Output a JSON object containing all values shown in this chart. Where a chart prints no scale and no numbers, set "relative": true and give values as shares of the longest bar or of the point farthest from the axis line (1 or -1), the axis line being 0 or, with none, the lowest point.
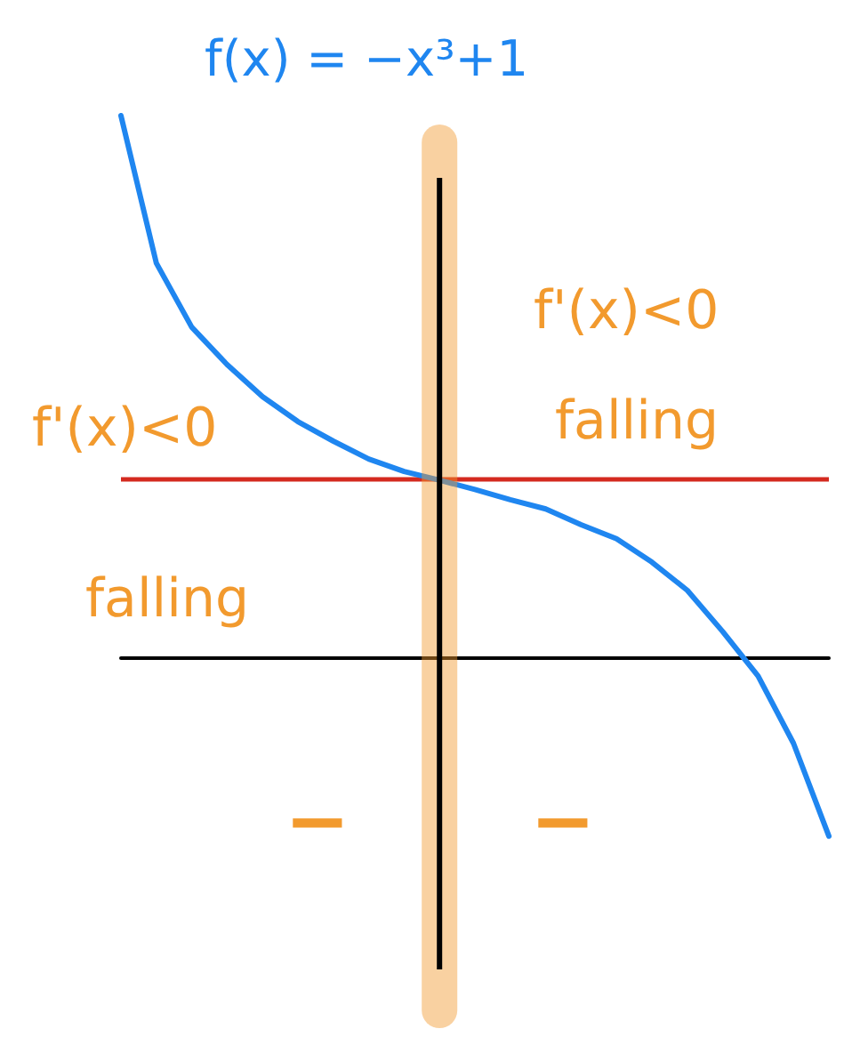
{
  "chart_data": {
    "type": "line",
    "title": "f(x) = −x³+1",
    "relative": true,
    "color": "#1f86f0",
    "categories": [
      null,
      null,
      null,
      null,
      null,
      null,
      null,
      null,
      null,
      null,
      null,
      null,
      null,
      null,
      null,
      null,
      null,
      null,
      null,
      null,
      null
    ],
    "values": [
      1.0,
      0.728,
      0.61,
      0.541,
      0.482,
      0.436,
      0.4,
      0.367,
      0.344,
      0.328,
      0.311,
      0.292,
      0.275,
      0.246,
      0.22,
      0.177,
      0.125,
      0.049,
      -0.033,
      -0.157,
      -0.328
    ],
    "ref_lines": [
      {
        "axis": "y",
        "value": 0.328,
        "color": "#d42a1f"
      }
    ],
    "annotations": [
      "f'(x)<0",
      "falling",
      "f'(x)<0",
      "falling",
      "−",
      "−"
    ]
  }
}
